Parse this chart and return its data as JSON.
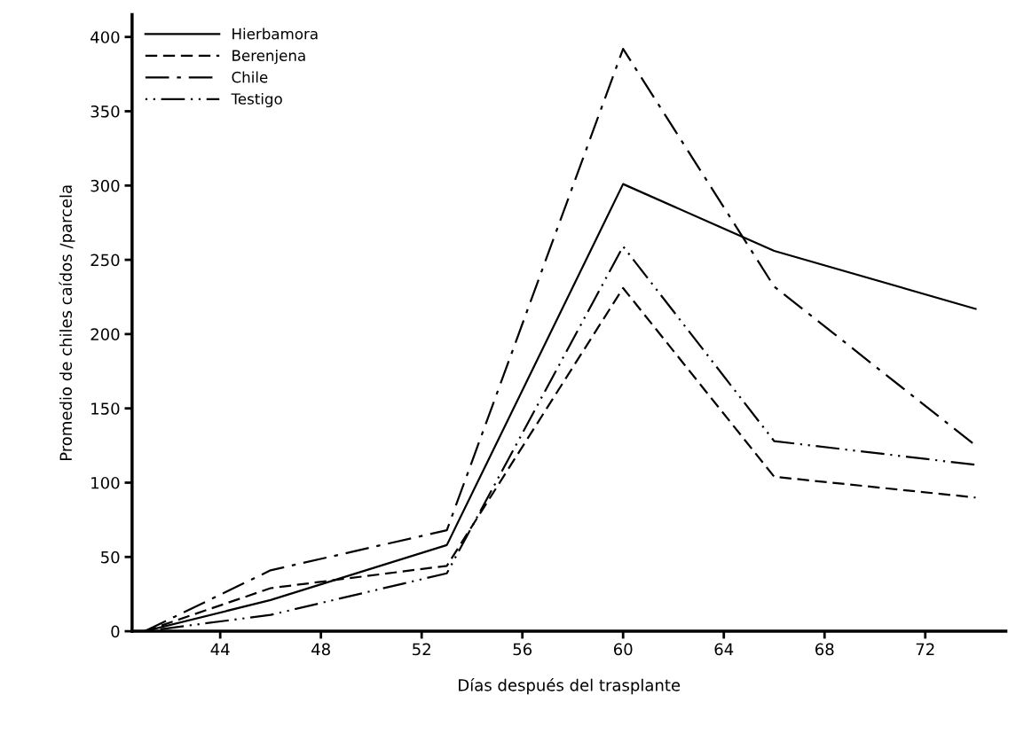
{
  "chart_data": {
    "type": "line",
    "xlabel": "Días después del trasplante",
    "ylabel": "Promedio de chiles caídos /parcela",
    "x": [
      41,
      46,
      53,
      60,
      66,
      74
    ],
    "series": [
      {
        "name": "Hierbamora",
        "color": "#000000",
        "line_style": "solid",
        "values": [
          0,
          21,
          58,
          301,
          256,
          217
        ]
      },
      {
        "name": "Berenjena",
        "color": "#000000",
        "line_style": "dashed",
        "values": [
          0,
          29,
          44,
          231,
          104,
          90
        ]
      },
      {
        "name": "Chile",
        "color": "#000000",
        "line_style": "dashdot",
        "values": [
          0,
          41,
          68,
          392,
          232,
          125
        ]
      },
      {
        "name": "Testigo",
        "color": "#000000",
        "line_style": "dotted",
        "values": [
          0,
          11,
          39,
          259,
          128,
          112
        ]
      }
    ],
    "xlim": [
      40.5,
      75.2
    ],
    "xticks": [
      44,
      48,
      52,
      56,
      60,
      64,
      68,
      72
    ],
    "ylim": [
      0,
      415
    ],
    "yticks": [
      0,
      50,
      100,
      150,
      200,
      250,
      300,
      350,
      400
    ],
    "grid": false,
    "legend": "top left",
    "marker": "none"
  }
}
